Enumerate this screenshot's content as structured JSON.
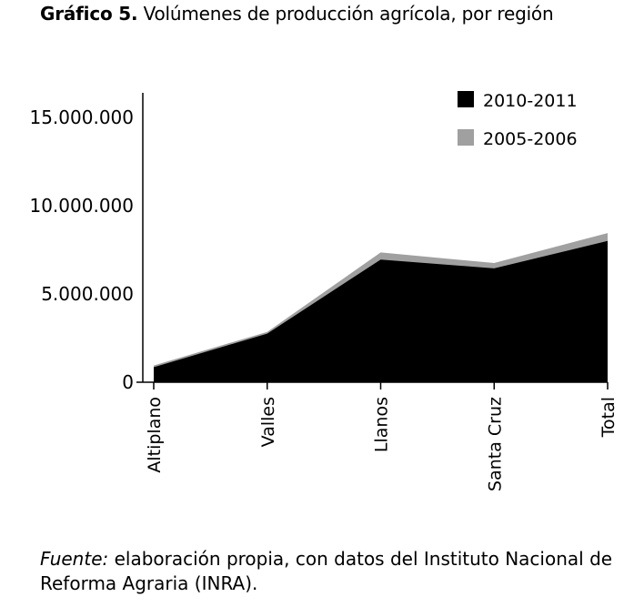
{
  "figure": {
    "label": "Gráfico 5.",
    "title": "Volúmenes de producción agrícola, por región",
    "source_label": "Fuente:",
    "source_text": "elaboración propia, con datos del Instituto Nacional de Reforma Agraria (INRA)."
  },
  "chart_data": {
    "type": "area",
    "title": "Volúmenes de producción agrícola, por región",
    "xlabel": "",
    "ylabel": "",
    "categories": [
      "Altiplano",
      "Valles",
      "Llanos",
      "Santa Cruz",
      "Total"
    ],
    "ylim": [
      0,
      16500000
    ],
    "yticks": [
      0,
      5000000,
      10000000,
      15000000
    ],
    "ytick_labels": [
      "0",
      "5.000.000",
      "10.000.000",
      "15.000.000"
    ],
    "grid": false,
    "legend_position": "top-right",
    "series": [
      {
        "name": "2005-2006",
        "color": "#a0a0a0",
        "values": [
          950000,
          2850000,
          7350000,
          6750000,
          8450000
        ]
      },
      {
        "name": "2010-2011",
        "color": "#000000",
        "values": [
          850000,
          2750000,
          6950000,
          6450000,
          8000000
        ]
      }
    ],
    "legend": [
      {
        "name": "2010-2011",
        "color": "#000000"
      },
      {
        "name": "2005-2006",
        "color": "#a0a0a0"
      }
    ]
  }
}
